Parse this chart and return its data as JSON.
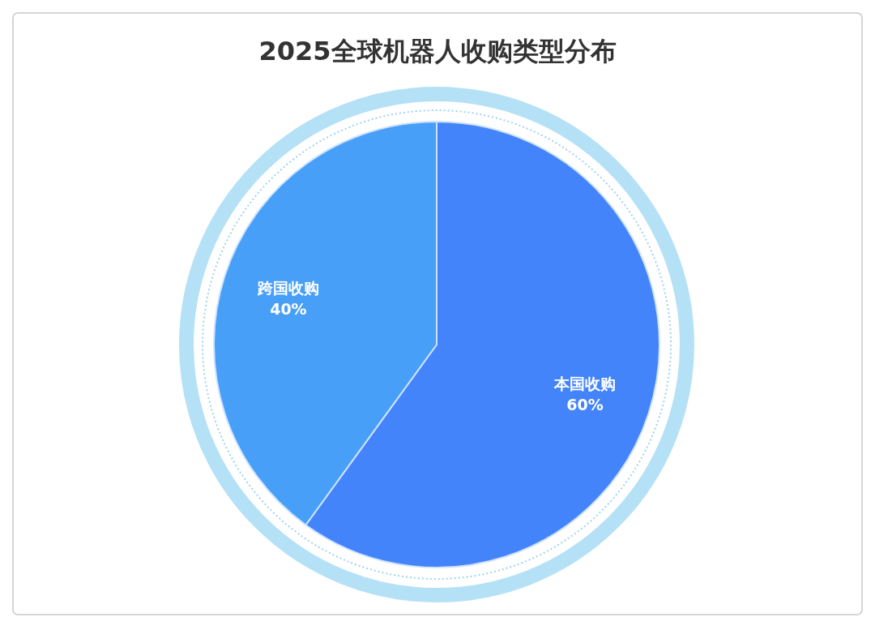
{
  "chart_data": {
    "type": "pie",
    "title": "2025全球机器人收购类型分布",
    "categories": [
      "本国收购",
      "跨国收购"
    ],
    "values": [
      60,
      40
    ],
    "colors": [
      "#4484fb",
      "#479ff8"
    ],
    "value_labels": [
      "60%",
      "40%"
    ]
  }
}
